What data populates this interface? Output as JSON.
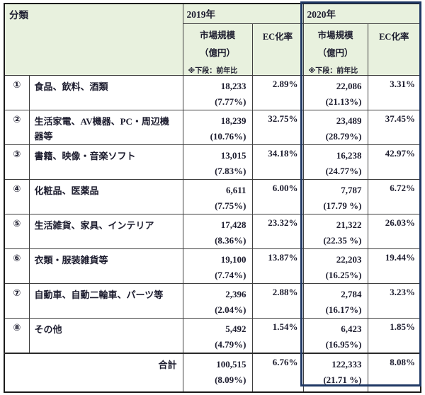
{
  "header": {
    "category_col": "分類",
    "year_2019": "2019年",
    "year_2020": "2020年",
    "market_size": "市場規模",
    "market_unit": "（億円）",
    "note": "※下段：前年比",
    "ec_rate": "EC化率"
  },
  "rows": [
    {
      "num": "①",
      "label": "食品、飲料、酒類",
      "y2019": {
        "value": "18,233",
        "yoy": "(7.77%)",
        "ec": "2.89%"
      },
      "y2020": {
        "value": "22,086",
        "yoy": "(21.13%)",
        "ec": "3.31%"
      }
    },
    {
      "num": "②",
      "label": "生活家電、AV機器、PC・周辺機器等",
      "y2019": {
        "value": "18,239",
        "yoy": "(10.76%)",
        "ec": "32.75%"
      },
      "y2020": {
        "value": "23,489",
        "yoy": "(28.79%)",
        "ec": "37.45%"
      }
    },
    {
      "num": "③",
      "label": "書籍、映像・音楽ソフト",
      "y2019": {
        "value": "13,015",
        "yoy": "(7.83%)",
        "ec": "34.18%"
      },
      "y2020": {
        "value": "16,238",
        "yoy": "(24.77%)",
        "ec": "42.97%"
      }
    },
    {
      "num": "④",
      "label": "化粧品、医薬品",
      "y2019": {
        "value": "6,611",
        "yoy": "(7.75%)",
        "ec": "6.00%"
      },
      "y2020": {
        "value": "7,787",
        "yoy": "(17.79 %)",
        "ec": "6.72%"
      }
    },
    {
      "num": "⑤",
      "label": "生活雑貨、家具、インテリア",
      "y2019": {
        "value": "17,428",
        "yoy": "(8.36%)",
        "ec": "23.32%"
      },
      "y2020": {
        "value": "21,322",
        "yoy": "(22.35 %)",
        "ec": "26.03%"
      }
    },
    {
      "num": "⑥",
      "label": "衣類・服装雑貨等",
      "y2019": {
        "value": "19,100",
        "yoy": "(7.74%)",
        "ec": "13.87%"
      },
      "y2020": {
        "value": "22,203",
        "yoy": "(16.25%)",
        "ec": "19.44%"
      }
    },
    {
      "num": "⑦",
      "label": "自動車、自動二輪車、パーツ等",
      "y2019": {
        "value": "2,396",
        "yoy": "(2.04%)",
        "ec": "2.88%"
      },
      "y2020": {
        "value": "2,784",
        "yoy": "(16.17%)",
        "ec": "3.23%"
      }
    },
    {
      "num": "⑧",
      "label": "その他",
      "y2019": {
        "value": "5,492",
        "yoy": "(4.79%)",
        "ec": "1.54%"
      },
      "y2020": {
        "value": "6,423",
        "yoy": "(16.95%)",
        "ec": "1.85%"
      }
    }
  ],
  "total": {
    "label": "合計",
    "y2019": {
      "value": "100,515",
      "yoy": "(8.09%)",
      "ec": "6.76%"
    },
    "y2020": {
      "value": "122,333",
      "yoy": "(21.71 %)",
      "ec": "8.08%"
    }
  },
  "colors": {
    "header_bg": "#E8F1DE",
    "highlight_border": "#1F3864",
    "grid_line": "#3F3F3F",
    "text": "#1C1C2E"
  }
}
